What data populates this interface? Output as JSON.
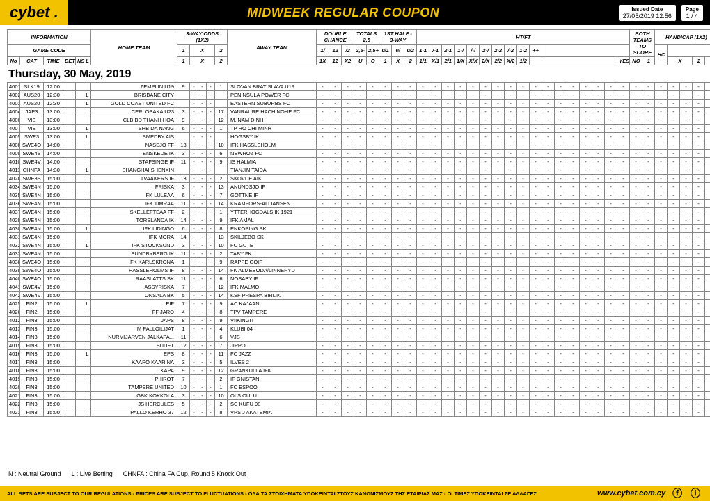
{
  "brand": "cybet",
  "title": "MIDWEEK REGULAR COUPON",
  "issued_label": "Issued Date",
  "issued": "27/05/2019 12:56",
  "page_label": "Page",
  "page": "1 / 4",
  "date_heading": "Thursday, 30 May, 2019",
  "legend": {
    "n": "N : Neutral Ground",
    "l": "L : Live Betting",
    "chnfa": "CHNFA : China FA Cup, Round 5 Knock Out"
  },
  "disclaimer": "ALL BETS ARE SUBJECT TO OUR REGULATIONS - PRICES ARE SUBJECT TO FLUCTUATIONS - ΟΛΑ ΤΑ ΣΤΟΙΧΗΜΑΤΑ ΥΠΟΚΕΙΝΤΑΙ ΣΤΟΥΣ ΚΑΝΟΝΙΣΜΟΥΣ ΤΗΣ ΕΤΑΙΡΙΑΣ ΜΑΣ - ΟΙ ΤΙΜΕΣ ΥΠΟΚΕΙΝΤΑΙ ΣΕ ΑΛΛΑΓΕΣ",
  "url": "www.cybet.com.cy",
  "header_groups": {
    "information": "INFORMATION",
    "gamecode": "GAME CODE",
    "hometeam": "HOME TEAM",
    "threeway": "3-WAY ODDS (1X2)",
    "awayteam": "AWAY TEAM",
    "doublechance": "DOUBLE CHANCE",
    "totals": "TOTALS 2,5",
    "firsthalf": "1ST HALF - 3-WAY",
    "htft": "HT/FT",
    "bothteams": "BOTH TEAMS TO SCORE",
    "handicap": "HANDICAP (1X2)"
  },
  "header_sub": {
    "no": "No",
    "cat": "CAT",
    "time": "TIME",
    "det": "DET",
    "ns": "NS",
    "l": "L",
    "one": "1",
    "x": "X",
    "two": "2",
    "dc1": "1/",
    "dc12": "12",
    "dc2": "/2",
    "tunder": "2,5-",
    "tover": "2,5+",
    "h01": "0/1",
    "h0": "0/",
    "h02": "0/2",
    "u": "U",
    "o": "O",
    "one2": "1",
    "x2": "X",
    "two2": "2",
    "hf": [
      "1-1",
      "/-1",
      "2-1",
      "1-/",
      "/-/",
      "2-/",
      "2-2",
      "/-2",
      "1-2",
      "++"
    ],
    "onex": "1X",
    "twelve": "12",
    "ex2": "X2",
    "oo": [
      "1/1",
      "X/1",
      "2/1",
      "1/X",
      "X/X",
      "2/X",
      "2/2",
      "X/2",
      "1/2"
    ],
    "yes": "YES",
    "no2": "NO",
    "hc": "HC",
    "h1": "1",
    "hx": "X",
    "h2": "2"
  },
  "rows": [
    {
      "no": "4001",
      "cat": "SLK19",
      "time": "12:00",
      "l": "",
      "home": "ZEMPLIN U19",
      "o1": "9",
      "o2": "1",
      "away": "SLOVAN BRATISLAVA U19"
    },
    {
      "no": "4002",
      "cat": "AUS20",
      "time": "12:30",
      "l": "L",
      "home": "BRISBANE CITY",
      "o1": "",
      "o2": "",
      "away": "PENINSULA POWER FC"
    },
    {
      "no": "4003",
      "cat": "AUS20",
      "time": "12:30",
      "l": "L",
      "home": "GOLD COAST UNITED FC",
      "o1": "",
      "o2": "",
      "away": "EASTERN SUBURBS FC"
    },
    {
      "no": "4004",
      "cat": "JAP3",
      "time": "13:00",
      "l": "",
      "home": "CER. OSAKA U23",
      "o1": "3",
      "o2": "17",
      "away": "VANRAURE HACHINOHE FC"
    },
    {
      "no": "4006",
      "cat": "VIE",
      "time": "13:00",
      "l": "",
      "home": "CLB BD THANH HOA",
      "o1": "9",
      "o2": "12",
      "away": "M. NAM DINH"
    },
    {
      "no": "4007",
      "cat": "VIE",
      "time": "13:00",
      "l": "L",
      "home": "SHB DA NANG",
      "o1": "6",
      "o2": "1",
      "away": "TP HO CHI MINH"
    },
    {
      "no": "4005",
      "cat": "SWE3",
      "time": "13:00",
      "l": "L",
      "home": "SMEDBY AIS",
      "o1": "",
      "o2": "",
      "away": "HOGSBY IK"
    },
    {
      "no": "4008",
      "cat": "SWE4O",
      "time": "14:00",
      "l": "",
      "home": "NASSJO FF",
      "o1": "13",
      "o2": "10",
      "away": "IFK HASSLEHOLM"
    },
    {
      "no": "4009",
      "cat": "SWE4S",
      "time": "14:00",
      "l": "",
      "home": "ENSKEDE IK",
      "o1": "3",
      "o2": "6",
      "away": "NEWROZ FC"
    },
    {
      "no": "4010",
      "cat": "SWE4V",
      "time": "14:00",
      "l": "",
      "home": "STAFSINGE IF",
      "o1": "11",
      "o2": "9",
      "away": "IS HALMIA"
    },
    {
      "no": "4011",
      "cat": "CHNFA",
      "time": "14:30",
      "l": "L",
      "home": "SHANGHAI SHENXIN",
      "o1": "",
      "o2": "",
      "away": "TIANJIN TAIDA"
    },
    {
      "no": "4028",
      "cat": "SWE3S",
      "time": "15:00",
      "l": "",
      "home": "TVAAKERS IF",
      "o1": "13",
      "o2": "2",
      "away": "SKOVDE AIK"
    },
    {
      "no": "4034",
      "cat": "SWE4N",
      "time": "15:00",
      "l": "",
      "home": "FRISKA",
      "o1": "3",
      "o2": "13",
      "away": "ANUNDSJO IF"
    },
    {
      "no": "4035",
      "cat": "SWE4N",
      "time": "15:00",
      "l": "",
      "home": "IFK LULEAA",
      "o1": "6",
      "o2": "7",
      "away": "GOTTNE IF"
    },
    {
      "no": "4036",
      "cat": "SWE4N",
      "time": "15:00",
      "l": "",
      "home": "IFK TIMRAA",
      "o1": "11",
      "o2": "14",
      "away": "KRAMFORS-ALLIANSEN"
    },
    {
      "no": "4037",
      "cat": "SWE4N",
      "time": "15:00",
      "l": "",
      "home": "SKELLEFTEAA FF",
      "o1": "2",
      "o2": "1",
      "away": "YTTERHOGDALS IK 1921"
    },
    {
      "no": "4029",
      "cat": "SWE4N",
      "time": "15:00",
      "l": "",
      "home": "TORSLANDA IK",
      "o1": "14",
      "o2": "9",
      "away": "IFK AMAL"
    },
    {
      "no": "4030",
      "cat": "SWE4N",
      "time": "15:00",
      "l": "L",
      "home": "IFK LIDINGO",
      "o1": "6",
      "o2": "8",
      "away": "ENKOPING SK"
    },
    {
      "no": "4031",
      "cat": "SWE4N",
      "time": "15:00",
      "l": "",
      "home": "IFK MORA",
      "o1": "14",
      "o2": "13",
      "away": "SKILJEBO SK"
    },
    {
      "no": "4032",
      "cat": "SWE4N",
      "time": "15:00",
      "l": "L",
      "home": "IFK STOCKSUND",
      "o1": "3",
      "o2": "10",
      "away": "FC GUTE"
    },
    {
      "no": "4033",
      "cat": "SWE4N",
      "time": "15:00",
      "l": "",
      "home": "SUNDBYBERG IK",
      "o1": "11",
      "o2": "2",
      "away": "TABY FK"
    },
    {
      "no": "4038",
      "cat": "SWE4O",
      "time": "15:00",
      "l": "",
      "home": "FK KARLSKRONA",
      "o1": "1",
      "o2": "9",
      "away": "RAPPE GOIF"
    },
    {
      "no": "4039",
      "cat": "SWE4O",
      "time": "15:00",
      "l": "",
      "home": "HASSLEHOLMS IF",
      "o1": "8",
      "o2": "14",
      "away": "FK ALMEBODA/LINNERYD"
    },
    {
      "no": "4040",
      "cat": "SWE4O",
      "time": "15:00",
      "l": "",
      "home": "RAASLATTS SK",
      "o1": "11",
      "o2": "6",
      "away": "NOSABY IF"
    },
    {
      "no": "4041",
      "cat": "SWE4V",
      "time": "15:00",
      "l": "",
      "home": "ASSYRISKA",
      "o1": "7",
      "o2": "12",
      "away": "IFK MALMO"
    },
    {
      "no": "4042",
      "cat": "SWE4V",
      "time": "15:00",
      "l": "",
      "home": "ONSALA BK",
      "o1": "5",
      "o2": "14",
      "away": "KSF PRESPA BIRLIK"
    },
    {
      "no": "4025",
      "cat": "FIN2",
      "time": "15:00",
      "l": "L",
      "home": "EIF",
      "o1": "7",
      "o2": "9",
      "away": "AC KAJAANI"
    },
    {
      "no": "4026",
      "cat": "FIN2",
      "time": "15:00",
      "l": "",
      "home": "FF JARO",
      "o1": "4",
      "o2": "8",
      "away": "TPV TAMPERE"
    },
    {
      "no": "4012",
      "cat": "FIN3",
      "time": "15:00",
      "l": "",
      "home": "JAPS",
      "o1": "8",
      "o2": "9",
      "away": "VIIKINGIT"
    },
    {
      "no": "4013",
      "cat": "FIN3",
      "time": "15:00",
      "l": "",
      "home": "M PALLOILIJAT",
      "o1": "1",
      "o2": "4",
      "away": "KLUBI 04"
    },
    {
      "no": "4014",
      "cat": "FIN3",
      "time": "15:00",
      "l": "",
      "home": "NURMIJARVEN JALKAPA...",
      "o1": "11",
      "o2": "6",
      "away": "VJS"
    },
    {
      "no": "4015",
      "cat": "FIN3",
      "time": "15:00",
      "l": "",
      "home": "SUDET",
      "o1": "12",
      "o2": "7",
      "away": "JIPPO"
    },
    {
      "no": "4016",
      "cat": "FIN3",
      "time": "15:00",
      "l": "L",
      "home": "EPS",
      "o1": "8",
      "o2": "11",
      "away": "FC JAZZ"
    },
    {
      "no": "4017",
      "cat": "FIN3",
      "time": "15:00",
      "l": "",
      "home": "KAAPO KAARINA",
      "o1": "3",
      "o2": "5",
      "away": "ILVES 2"
    },
    {
      "no": "4018",
      "cat": "FIN3",
      "time": "15:00",
      "l": "",
      "home": "KAPA",
      "o1": "9",
      "o2": "12",
      "away": "GRANKULLA IFK"
    },
    {
      "no": "4019",
      "cat": "FIN3",
      "time": "15:00",
      "l": "",
      "home": "P-IIROT",
      "o1": "7",
      "o2": "2",
      "away": "IF GNISTAN"
    },
    {
      "no": "4020",
      "cat": "FIN3",
      "time": "15:00",
      "l": "",
      "home": "TAMPERE UNITED",
      "o1": "10",
      "o2": "1",
      "away": "FC ESPOO"
    },
    {
      "no": "4021",
      "cat": "FIN3",
      "time": "15:00",
      "l": "",
      "home": "GBK KOKKOLA",
      "o1": "3",
      "o2": "10",
      "away": "OLS OULU"
    },
    {
      "no": "4022",
      "cat": "FIN3",
      "time": "15:00",
      "l": "",
      "home": "JS HERCULES",
      "o1": "5",
      "o2": "2",
      "away": "SC KUFU 98"
    },
    {
      "no": "4023",
      "cat": "FIN3",
      "time": "15:00",
      "l": "",
      "home": "PALLO KERHO 37",
      "o1": "12",
      "o2": "8",
      "away": "VPS J AKATEMIA"
    }
  ],
  "dash": "-",
  "extra_cols": 32
}
